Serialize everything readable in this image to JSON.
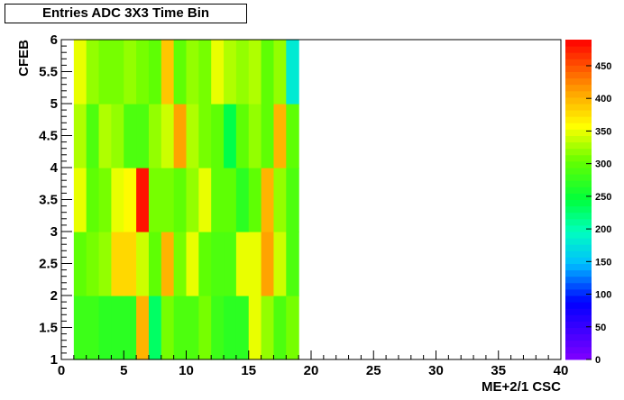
{
  "chart_data": {
    "type": "heatmap",
    "title": "Entries ADC 3X3 Time Bin",
    "xlabel": "ME+2/1 CSC",
    "ylabel": "CFEB",
    "xlim": [
      0,
      40
    ],
    "ylim": [
      1,
      6
    ],
    "x_ticks": [
      "0",
      "5",
      "10",
      "15",
      "20",
      "25",
      "30",
      "35",
      "40"
    ],
    "y_ticks": [
      "1",
      "1.5",
      "2",
      "2.5",
      "3",
      "3.5",
      "4",
      "4.5",
      "5",
      "5.5",
      "6"
    ],
    "colorbar": {
      "min": 0,
      "max": 490,
      "ticks": [
        "0",
        "50",
        "100",
        "150",
        "200",
        "250",
        "300",
        "350",
        "400",
        "450"
      ]
    },
    "x_edges": [
      1,
      2,
      3,
      4,
      5,
      6,
      7,
      8,
      9,
      10,
      11,
      12,
      13,
      14,
      15,
      16,
      17,
      18,
      19
    ],
    "y_edges": [
      1,
      2,
      3,
      4,
      5,
      6
    ],
    "values": [
      [
        280,
        280,
        270,
        270,
        270,
        400,
        230,
        310,
        290,
        290,
        310,
        280,
        270,
        270,
        350,
        320,
        290,
        310
      ],
      [
        300,
        310,
        320,
        380,
        380,
        340,
        300,
        400,
        310,
        350,
        300,
        290,
        290,
        350,
        350,
        410,
        340,
        290
      ],
      [
        350,
        300,
        310,
        350,
        360,
        480,
        310,
        310,
        300,
        320,
        350,
        300,
        300,
        270,
        300,
        400,
        320,
        290
      ],
      [
        330,
        290,
        330,
        320,
        290,
        290,
        320,
        340,
        410,
        330,
        310,
        300,
        240,
        300,
        320,
        300,
        400,
        300
      ],
      [
        350,
        320,
        310,
        310,
        320,
        310,
        300,
        390,
        300,
        320,
        310,
        350,
        330,
        320,
        330,
        300,
        320,
        180
      ]
    ]
  }
}
